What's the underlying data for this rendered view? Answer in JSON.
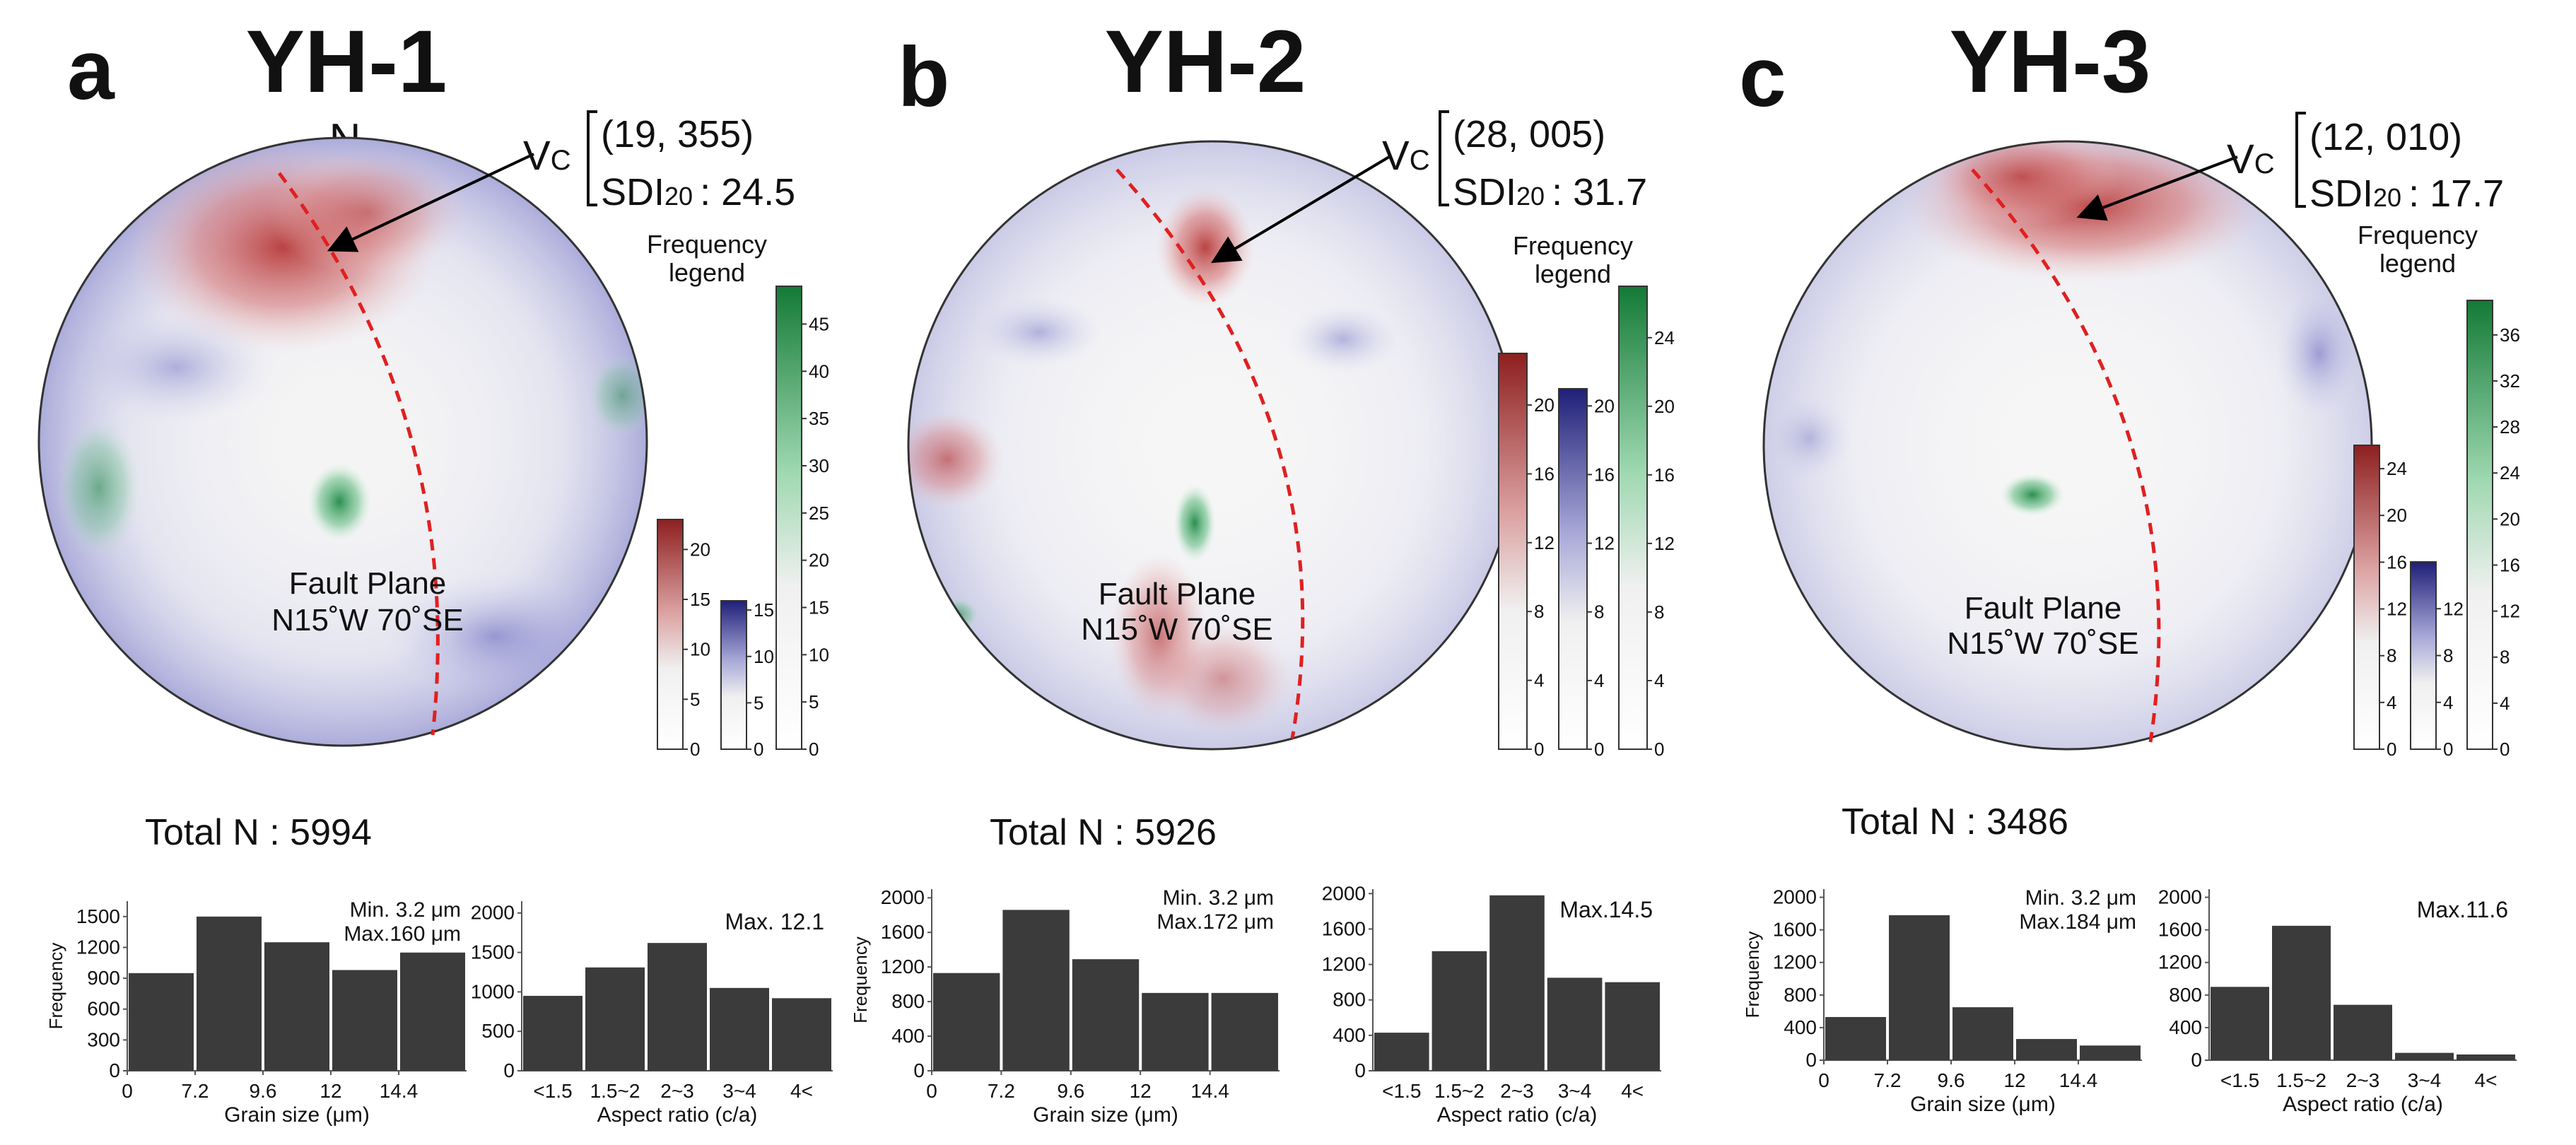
{
  "axis_labels": {
    "frequency": "Frequency",
    "grain_size": "Grain size (μm)",
    "aspect_ratio": "Aspect ratio (c/a)"
  },
  "legend_title": [
    "Frequency",
    "legend"
  ],
  "colors": {
    "red": "#a83232",
    "blue": "#2d2d8c",
    "green": "#1e7a3a",
    "bar": "#3b3b3b",
    "fault": "#e02020"
  },
  "chart_data": [
    {
      "type": "bar",
      "panel": "a",
      "sample": "YH-1",
      "north": "N",
      "vc_label": "V",
      "vc_sub": "C",
      "vc_pair": "(19, 355)",
      "sdi_label": "SDI",
      "sdi_sub": "20",
      "sdi_value": ": 24.5",
      "fault_plane": [
        "Fault Plane",
        "N15˚W 70˚SE"
      ],
      "total_n": "Total N : 5994",
      "legend": {
        "red": {
          "max": 23,
          "ticks": [
            0,
            5,
            10,
            15,
            20
          ]
        },
        "blue": {
          "max": 16,
          "ticks": [
            0,
            5,
            10,
            15
          ]
        },
        "green": {
          "max": 49,
          "ticks": [
            0,
            5,
            10,
            15,
            20,
            25,
            30,
            35,
            40,
            45
          ]
        }
      },
      "grain_size": {
        "xlabel": "Grain size (μm)",
        "ylabel": "Frequency",
        "x_ticks": [
          "0",
          "7.2",
          "9.6",
          "12",
          "14.4"
        ],
        "values": [
          950,
          1500,
          1250,
          980,
          1150
        ],
        "ylim": [
          0,
          1650
        ],
        "y_ticks": [
          0,
          300,
          600,
          900,
          1200,
          1500
        ],
        "annotation": [
          "Min.  3.2 μm",
          "Max.160 μm"
        ]
      },
      "aspect_ratio": {
        "xlabel": "Aspect ratio (c/a)",
        "categories": [
          "<1.5",
          "1.5~2",
          "2~3",
          "3~4",
          "4<"
        ],
        "values": [
          950,
          1310,
          1620,
          1050,
          920
        ],
        "ylim": [
          0,
          2150
        ],
        "y_ticks": [
          0,
          500,
          1000,
          1500,
          2000
        ],
        "annotation": "Max. 12.1"
      }
    },
    {
      "type": "bar",
      "panel": "b",
      "sample": "YH-2",
      "north": "",
      "vc_label": "V",
      "vc_sub": "C",
      "vc_pair": "(28, 005)",
      "sdi_label": "SDI",
      "sdi_sub": "20",
      "sdi_value": ": 31.7",
      "fault_plane": [
        "Fault Plane",
        "N15˚W 70˚SE"
      ],
      "total_n": "Total N : 5926",
      "legend": {
        "red": {
          "max": 23,
          "ticks": [
            0,
            4,
            8,
            12,
            16,
            20
          ]
        },
        "blue": {
          "max": 21,
          "ticks": [
            0,
            4,
            8,
            12,
            16,
            20
          ]
        },
        "green": {
          "max": 27,
          "ticks": [
            0,
            4,
            8,
            12,
            16,
            20,
            24
          ]
        }
      },
      "grain_size": {
        "xlabel": "Grain size (μm)",
        "ylabel": "Frequency",
        "x_ticks": [
          "0",
          "7.2",
          "9.6",
          "12",
          "14.4"
        ],
        "values": [
          1130,
          1860,
          1290,
          900,
          900
        ],
        "ylim": [
          0,
          2100
        ],
        "y_ticks": [
          0,
          400,
          800,
          1200,
          1600,
          2000
        ],
        "annotation": [
          "Min.  3.2 μm",
          "Max.172 μm"
        ]
      },
      "aspect_ratio": {
        "xlabel": "Aspect ratio (c/a)",
        "categories": [
          "<1.5",
          "1.5~2",
          "2~3",
          "3~4",
          "4<"
        ],
        "values": [
          430,
          1350,
          1980,
          1050,
          1000
        ],
        "ylim": [
          0,
          2050
        ],
        "y_ticks": [
          0,
          400,
          800,
          1200,
          1600,
          2000
        ],
        "annotation": "Max.14.5"
      }
    },
    {
      "type": "bar",
      "panel": "c",
      "sample": "YH-3",
      "north": "",
      "vc_label": "V",
      "vc_sub": "C",
      "vc_pair": "(12, 010)",
      "sdi_label": "SDI",
      "sdi_sub": "20",
      "sdi_value": ": 17.7",
      "fault_plane": [
        "Fault Plane",
        "N15˚W 70˚SE"
      ],
      "total_n": "Total N : 3486",
      "legend": {
        "red": {
          "max": 26,
          "ticks": [
            0,
            4,
            8,
            12,
            16,
            20,
            24
          ]
        },
        "blue": {
          "max": 16,
          "ticks": [
            0,
            4,
            8,
            12
          ]
        },
        "green": {
          "max": 39,
          "ticks": [
            0,
            4,
            8,
            12,
            16,
            20,
            24,
            28,
            32,
            36
          ]
        }
      },
      "grain_size": {
        "xlabel": "Grain size (μm)",
        "ylabel": "Frequency",
        "x_ticks": [
          "0",
          "7.2",
          "9.6",
          "12",
          "14.4"
        ],
        "values": [
          530,
          1780,
          650,
          260,
          180
        ],
        "ylim": [
          0,
          2100
        ],
        "y_ticks": [
          0,
          400,
          800,
          1200,
          1600,
          2000
        ],
        "annotation": [
          "Min.  3.2 μm",
          "Max.184 μm"
        ]
      },
      "aspect_ratio": {
        "xlabel": "Aspect ratio (c/a)",
        "categories": [
          "<1.5",
          "1.5~2",
          "2~3",
          "3~4",
          "4<"
        ],
        "values": [
          900,
          1650,
          680,
          90,
          70
        ],
        "ylim": [
          0,
          2100
        ],
        "y_ticks": [
          0,
          400,
          800,
          1200,
          1600,
          2000
        ],
        "annotation": "Max.11.6"
      }
    }
  ]
}
